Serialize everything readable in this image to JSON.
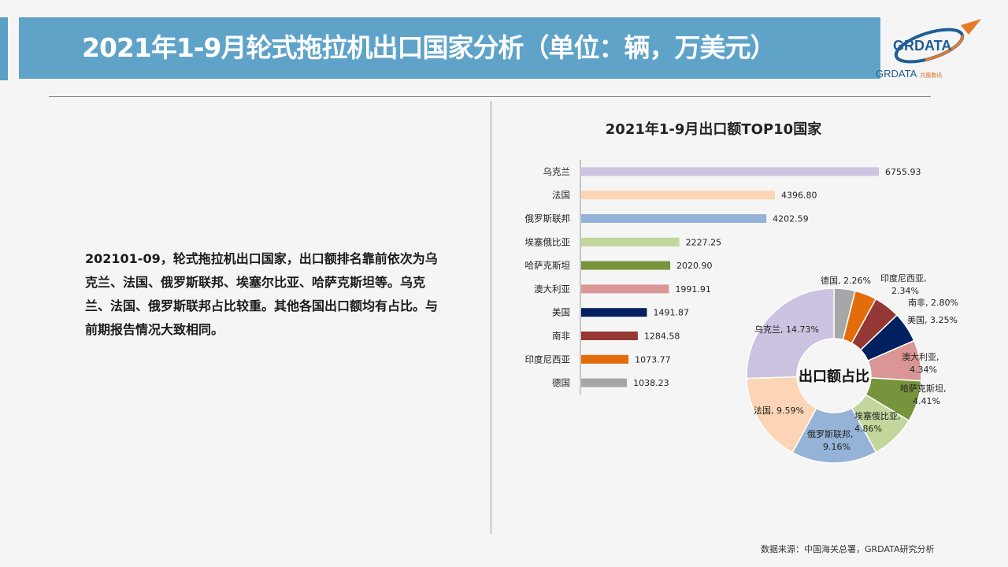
{
  "header": {
    "title": "2021年1-9月轮式拖拉机出口国家分析（单位：辆，万美元）"
  },
  "logo": {
    "name": "GRDATA",
    "sub": "共策数讯"
  },
  "summary": {
    "text": "202101-09，轮式拖拉机出口国家，出口额排名靠前依次为乌克兰、法国、俄罗斯联邦、埃塞尔比亚、哈萨克斯坦等。乌克兰、法国、俄罗斯联邦占比较重。其他各国出口额均有占比。与前期报告情况大致相同。"
  },
  "footer": {
    "source": "数据来源：中国海关总署，GRDATA研究分析"
  },
  "chart_data": [
    {
      "type": "bar",
      "orientation": "horizontal",
      "title": "2021年1-9月出口额TOP10国家",
      "categories": [
        "乌克兰",
        "法国",
        "俄罗斯联邦",
        "埃塞俄比亚",
        "哈萨克斯坦",
        "澳大利亚",
        "美国",
        "南非",
        "印度尼西亚",
        "德国"
      ],
      "values": [
        6755.93,
        4396.8,
        4202.59,
        2227.25,
        2020.9,
        1991.91,
        1491.87,
        1284.58,
        1073.77,
        1038.23
      ],
      "value_labels": [
        "6755.93",
        "4396.80",
        "4202.59",
        "2227.25",
        "2020.90",
        "1991.91",
        "1491.87",
        "1284.58",
        "1073.77",
        "1038.23"
      ],
      "colors": [
        "#ccc3e0",
        "#fbd5b5",
        "#95b3d7",
        "#c3d69b",
        "#77933c",
        "#d99694",
        "#002060",
        "#953735",
        "#e46c0a",
        "#a6a6a6"
      ],
      "xlim": [
        0,
        7000
      ],
      "grid": false
    },
    {
      "type": "pie",
      "donut": true,
      "center_label": "出口额占比",
      "categories": [
        "德国",
        "印度尼西亚",
        "南非",
        "美国",
        "澳大利亚",
        "哈萨克斯坦",
        "埃塞俄比亚",
        "俄罗斯联邦",
        "法国",
        "乌克兰"
      ],
      "values": [
        2.26,
        2.34,
        2.8,
        3.25,
        4.34,
        4.41,
        4.86,
        9.16,
        9.59,
        14.73
      ],
      "labels": [
        [
          "德国, 2.26%"
        ],
        [
          "印度尼西亚,",
          "2.34%"
        ],
        [
          "南非, 2.80%"
        ],
        [
          "美国, 3.25%"
        ],
        [
          "澳大利亚,",
          "4.34%"
        ],
        [
          "哈萨克斯坦,",
          "4.41%"
        ],
        [
          "埃塞俄比亚,",
          "4.86%"
        ],
        [
          "俄罗斯联邦,",
          "9.16%"
        ],
        [
          "法国, 9.59%"
        ],
        [
          "乌克兰, 14.73%"
        ]
      ],
      "colors": [
        "#a6a6a6",
        "#e46c0a",
        "#953735",
        "#002060",
        "#d99694",
        "#77933c",
        "#c3d69b",
        "#95b3d7",
        "#fbd5b5",
        "#ccc3e0"
      ]
    }
  ]
}
